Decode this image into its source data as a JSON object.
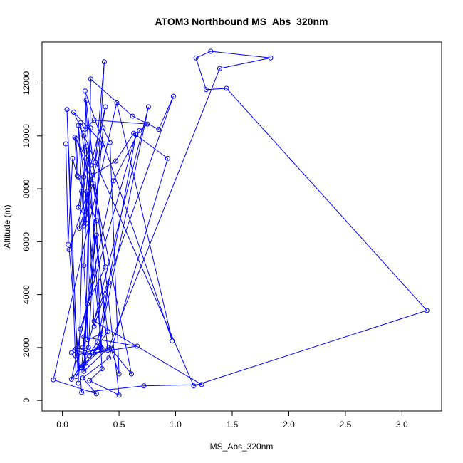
{
  "chart_data": {
    "type": "line",
    "title": "ATOM3 Northbound MS_Abs_320nm",
    "xlabel": "MS_Abs_320nm",
    "ylabel": "Altitude (m)",
    "xlim": [
      -0.18,
      3.35
    ],
    "ylim": [
      -400,
      13550
    ],
    "xticks": [
      0.0,
      0.5,
      1.0,
      1.5,
      2.0,
      2.5,
      3.0
    ],
    "xtick_labels": [
      "0.0",
      "0.5",
      "1.0",
      "1.5",
      "2.0",
      "2.5",
      "3.0"
    ],
    "yticks": [
      0,
      2000,
      4000,
      6000,
      8000,
      10000,
      12000
    ],
    "ytick_labels": [
      "0",
      "2000",
      "4000",
      "6000",
      "8000",
      "10000",
      "12000"
    ],
    "grid": false,
    "series_color": "#0000ff",
    "marker": "open-circle",
    "series": [
      {
        "x": [
          0.03,
          0.05,
          0.09,
          0.13,
          0.11,
          0.17,
          0.23,
          0.19,
          0.14,
          0.2,
          0.25,
          0.38,
          0.29,
          0.37,
          0.23,
          0.19,
          0.22,
          0.21,
          0.17,
          0.15,
          0.27,
          0.12,
          0.14,
          0.3,
          0.34,
          0.12,
          0.11,
          0.2,
          0.25,
          0.19,
          0.14,
          0.35,
          0.17,
          0.36,
          0.42,
          0.5,
          0.43,
          0.61,
          0.19,
          0.21,
          0.28,
          0.41,
          0.33,
          0.13,
          0.16,
          0.65,
          0.31,
          0.08,
          0.45,
          0.68,
          0.75,
          0.28,
          0.2,
          0.16,
          0.4,
          0.27,
          0.66,
          0.19,
          0.21,
          0.18,
          0.3,
          0.4,
          0.24,
          0.33,
          0.18,
          0.76,
          0.34,
          0.22,
          0.25,
          0.62,
          0.85,
          0.98,
          0.28,
          1.23,
          0.72,
          0.17,
          0.06,
          0.36,
          0.1,
          1.16,
          3.22,
          1.45,
          1.27,
          1.18,
          1.31,
          1.84,
          1.39,
          0.41,
          0.19,
          0.22,
          0.38,
          0.26,
          0.47,
          0.63,
          0.93,
          0.41,
          0.18,
          0.3,
          -0.08,
          0.48,
          0.97,
          0.2,
          0.35,
          0.24,
          0.5,
          0.21,
          0.14,
          0.04,
          0.12,
          0.16,
          0.08
        ],
        "y": [
          9700,
          5900,
          9150,
          8500,
          9950,
          9500,
          9100,
          8450,
          7300,
          7000,
          8900,
          11100,
          9000,
          12800,
          2000,
          5100,
          7900,
          6700,
          7900,
          6500,
          8200,
          9900,
          8450,
          6800,
          2000,
          1950,
          1900,
          1800,
          10300,
          6600,
          10400,
          1950,
          1250,
          10300,
          9750,
          1000,
          1950,
          1000,
          10000,
          9600,
          2800,
          4450,
          2000,
          1700,
          2700,
          10050,
          2200,
          800,
          8300,
          10200,
          10450,
          10600,
          10250,
          10500,
          2600,
          1800,
          2050,
          2400,
          1300,
          2000,
          6250,
          1900,
          1700,
          2050,
          1300,
          11100,
          2500,
          2300,
          12150,
          10750,
          10250,
          11500,
          3000,
          600,
          550,
          300,
          5700,
          9700,
          10900,
          550,
          3400,
          11800,
          11750,
          12950,
          13200,
          12950,
          12550,
          2000,
          1100,
          3650,
          5050,
          8500,
          9050,
          10100,
          9150,
          1600,
          850,
          250,
          780,
          11250,
          2250,
          11700,
          1200,
          750,
          200,
          11350,
          650,
          11000,
          900,
          1250,
          1800
        ]
      }
    ]
  }
}
